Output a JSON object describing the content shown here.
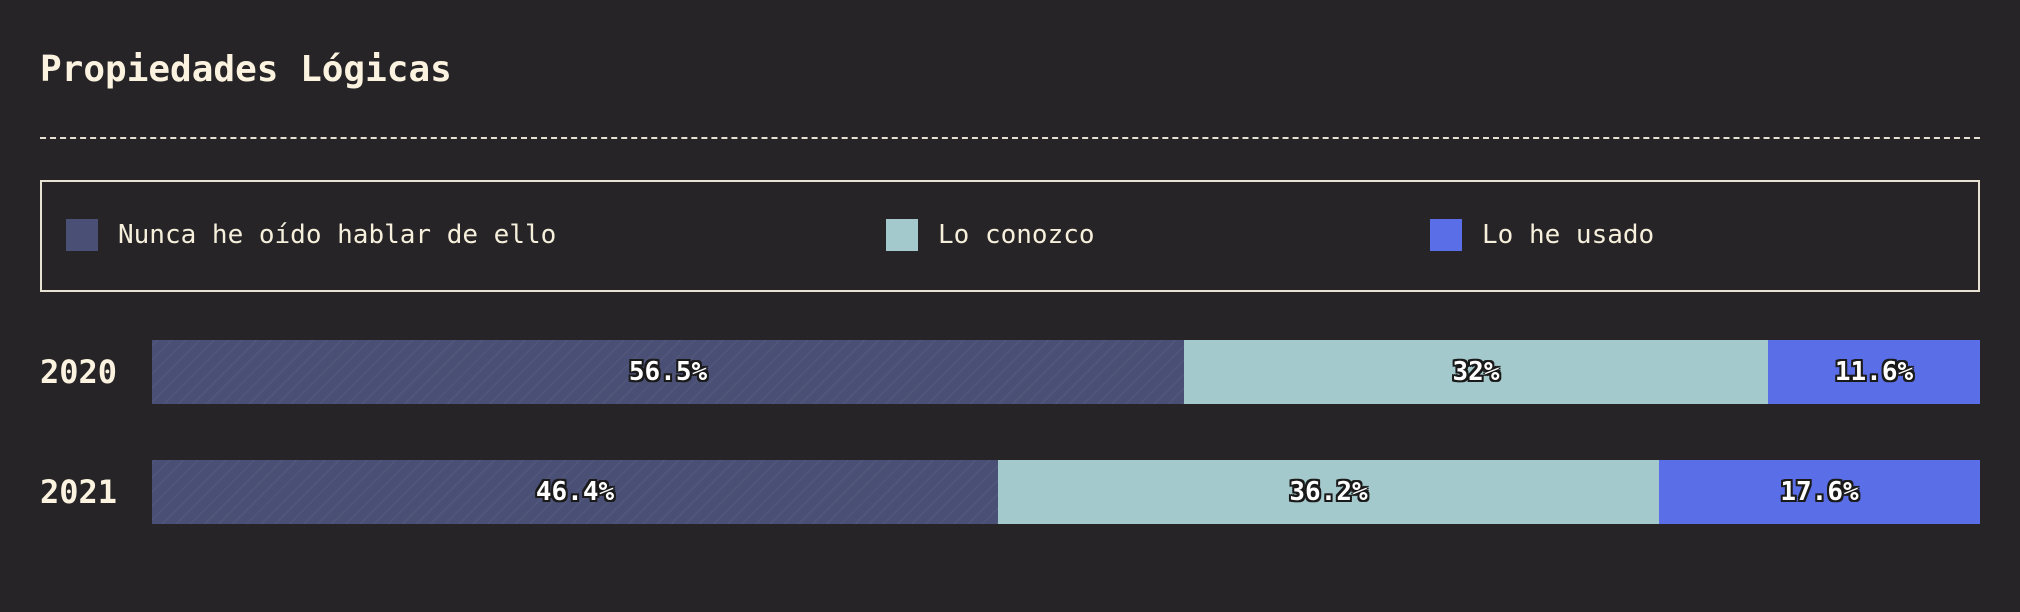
{
  "chart_data": {
    "type": "bar",
    "orientation": "horizontal",
    "stacked": true,
    "normalized": true,
    "title": "Propiedades Lógicas",
    "categories": [
      "2020",
      "2021"
    ],
    "series": [
      {
        "name": "Nunca he oído hablar de ello",
        "color": "#4a4f75",
        "values": [
          56.5,
          46.4
        ],
        "labels": [
          "56.5%",
          "46.4%"
        ]
      },
      {
        "name": "Lo conozco",
        "color": "#a4c9cc",
        "values": [
          32,
          36.2
        ],
        "labels": [
          "32%",
          "36.2%"
        ]
      },
      {
        "name": "Lo he usado",
        "color": "#5a6ee8",
        "values": [
          11.6,
          17.6
        ],
        "labels": [
          "11.6%",
          "17.6%"
        ]
      }
    ],
    "legend_position": "top",
    "grid": false
  }
}
